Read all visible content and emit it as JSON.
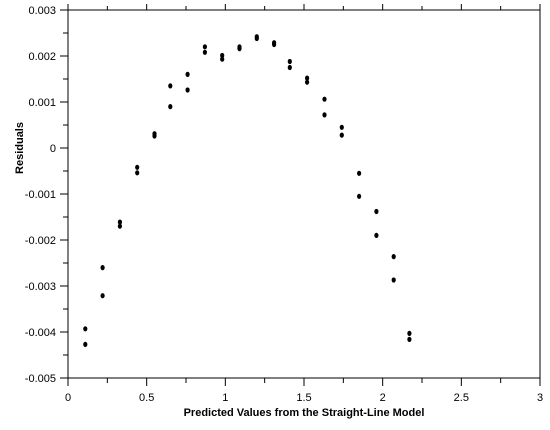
{
  "chart_data": {
    "type": "scatter",
    "title": "",
    "xlabel": "Predicted Values from the Straight-Line Model",
    "ylabel": "Residuals",
    "xlim": [
      0,
      3
    ],
    "ylim": [
      -0.005,
      0.003
    ],
    "x_ticks": [
      0,
      0.5,
      1,
      1.5,
      2,
      2.5,
      3
    ],
    "x_tick_labels": [
      "0",
      "0.5",
      "1",
      "1.5",
      "2",
      "2.5",
      "3"
    ],
    "y_ticks": [
      -0.005,
      -0.004,
      -0.003,
      -0.002,
      -0.001,
      0,
      0.001,
      0.002,
      0.003
    ],
    "y_tick_labels": [
      "-0.005",
      "-0.004",
      "-0.003",
      "-0.002",
      "-0.001",
      "0",
      "0.001",
      "0.002",
      "0.003"
    ],
    "grid": false,
    "marker_color": "#000000",
    "series": [
      {
        "points": [
          [
            0.11,
            -0.00393
          ],
          [
            0.11,
            -0.00427
          ],
          [
            0.22,
            -0.0026
          ],
          [
            0.22,
            -0.00321
          ],
          [
            0.33,
            -0.00161
          ],
          [
            0.33,
            -0.0017
          ],
          [
            0.44,
            -0.00042
          ],
          [
            0.44,
            -0.00054
          ],
          [
            0.55,
            0.00031
          ],
          [
            0.55,
            0.00026
          ],
          [
            0.65,
            0.00135
          ],
          [
            0.65,
            0.0009
          ],
          [
            0.76,
            0.0016
          ],
          [
            0.76,
            0.00126
          ],
          [
            0.87,
            0.0022
          ],
          [
            0.87,
            0.00208
          ],
          [
            0.98,
            0.00201
          ],
          [
            0.98,
            0.00193
          ],
          [
            1.09,
            0.0022
          ],
          [
            1.09,
            0.00216
          ],
          [
            1.2,
            0.00242
          ],
          [
            1.2,
            0.00238
          ],
          [
            1.31,
            0.00229
          ],
          [
            1.31,
            0.00225
          ],
          [
            1.41,
            0.00188
          ],
          [
            1.41,
            0.00175
          ],
          [
            1.52,
            0.00152
          ],
          [
            1.52,
            0.00143
          ],
          [
            1.63,
            0.00106
          ],
          [
            1.63,
            0.00072
          ],
          [
            1.74,
            0.00045
          ],
          [
            1.74,
            0.00028
          ],
          [
            1.85,
            -0.00055
          ],
          [
            1.85,
            -0.00105
          ],
          [
            1.96,
            -0.00138
          ],
          [
            1.96,
            -0.0019
          ],
          [
            2.07,
            -0.00236
          ],
          [
            2.07,
            -0.00287
          ],
          [
            2.17,
            -0.00403
          ],
          [
            2.17,
            -0.00416
          ]
        ]
      }
    ]
  }
}
